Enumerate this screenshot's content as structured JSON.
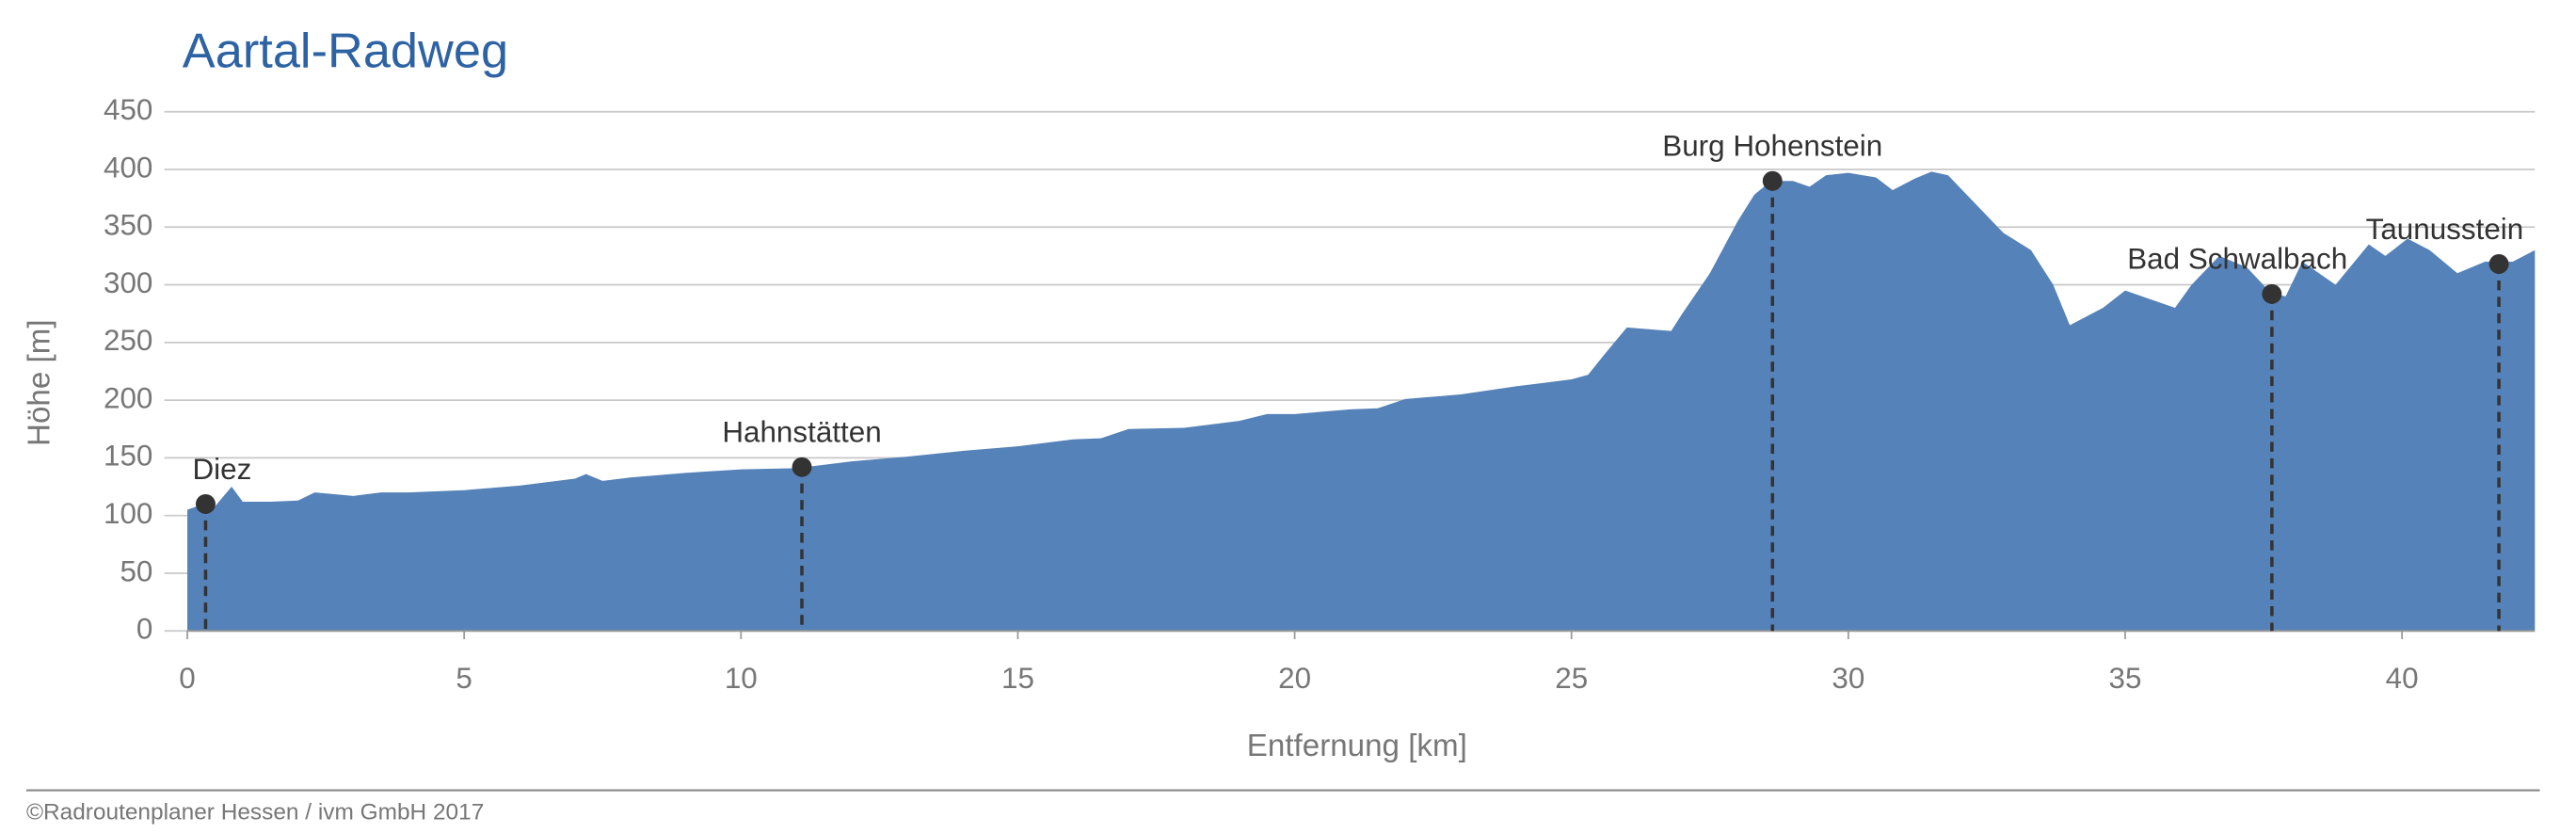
{
  "chart_data": {
    "type": "area",
    "title": "Aartal-Radweg",
    "xlabel": "Entfernung [km]",
    "ylabel": "Höhe [m]",
    "footer": "©Radroutenplaner Hessen / ivm GmbH 2017",
    "color": "#5582b8",
    "grid": true,
    "xlim": [
      0,
      42.4
    ],
    "ylim": [
      0,
      450
    ],
    "xticks": [
      0,
      5,
      10,
      15,
      20,
      25,
      30,
      35,
      40
    ],
    "yticks": [
      0,
      50,
      100,
      150,
      200,
      250,
      300,
      350,
      400,
      450
    ],
    "x": [
      0,
      0.3,
      0.5,
      0.8,
      1.0,
      1.5,
      2.0,
      2.3,
      3.0,
      3.5,
      4.0,
      5.0,
      6.0,
      7.0,
      7.2,
      7.5,
      8.0,
      9.0,
      10.0,
      11.0,
      12.0,
      13.0,
      14.0,
      15.0,
      16.0,
      16.5,
      17.0,
      18.0,
      19.0,
      19.5,
      20.0,
      21.0,
      21.5,
      22.0,
      23.0,
      24.0,
      24.5,
      25.0,
      25.3,
      25.6,
      26.0,
      26.8,
      27.0,
      27.5,
      28.0,
      28.3,
      28.6,
      29.0,
      29.3,
      29.6,
      30.0,
      30.5,
      30.8,
      31.2,
      31.5,
      31.8,
      32.3,
      32.8,
      33.3,
      33.7,
      34.0,
      34.6,
      35.0,
      35.3,
      35.9,
      36.2,
      36.7,
      37.2,
      37.65,
      37.9,
      38.2,
      38.8,
      39.4,
      39.7,
      40.1,
      40.5,
      41.0,
      41.5,
      42.0,
      42.4
    ],
    "values": [
      105,
      110,
      108,
      125,
      112,
      112,
      113,
      120,
      117,
      120,
      120,
      122,
      126,
      132,
      136,
      130,
      133,
      137,
      140,
      141,
      147,
      151,
      156,
      160,
      166,
      167,
      175,
      176,
      182,
      188,
      188,
      192,
      193,
      201,
      205,
      212,
      215,
      218,
      222,
      240,
      263,
      260,
      275,
      310,
      355,
      378,
      390,
      390,
      385,
      395,
      397,
      393,
      382,
      392,
      398,
      395,
      370,
      345,
      330,
      300,
      265,
      280,
      295,
      290,
      280,
      300,
      325,
      315,
      292,
      290,
      320,
      300,
      335,
      325,
      340,
      330,
      310,
      320,
      320,
      330
    ],
    "annotations": [
      {
        "label": "Diez",
        "x": 0.33,
        "y": 110
      },
      {
        "label": "Hahnstätten",
        "x": 11.1,
        "y": 142
      },
      {
        "label": "Burg Hohenstein",
        "x": 28.63,
        "y": 390
      },
      {
        "label": "Bad Schwalbach",
        "x": 37.65,
        "y": 292
      },
      {
        "label": "Taunusstein",
        "x": 41.75,
        "y": 318
      }
    ]
  }
}
